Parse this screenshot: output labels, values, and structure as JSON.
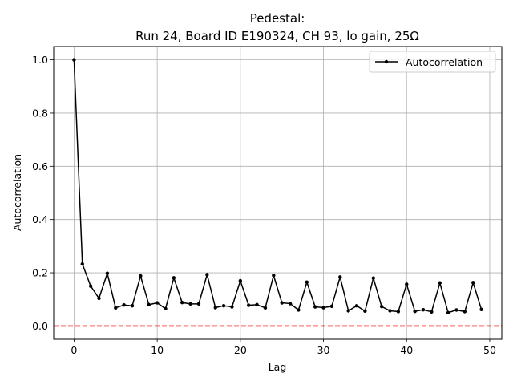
{
  "chart_data": {
    "type": "line",
    "title_line1": "Pedestal:",
    "title_line2": "Run 24, Board ID E190324, CH 93, lo gain, 25Ω",
    "xlabel": "Lag",
    "ylabel": "Autocorrelation",
    "xlim": [
      -2.45,
      51.45
    ],
    "ylim": [
      -0.05,
      1.05
    ],
    "x_ticks": [
      0,
      10,
      20,
      30,
      40,
      50
    ],
    "y_ticks": [
      0.0,
      0.2,
      0.4,
      0.6,
      0.8,
      1.0
    ],
    "x_tick_labels": [
      "0",
      "10",
      "20",
      "30",
      "40",
      "50"
    ],
    "y_tick_labels": [
      "0.0",
      "0.2",
      "0.4",
      "0.6",
      "0.8",
      "1.0"
    ],
    "grid": true,
    "legend_position": "top-right",
    "series": [
      {
        "name": "Autocorrelation",
        "color": "#000000",
        "x": [
          0,
          1,
          2,
          3,
          4,
          5,
          6,
          7,
          8,
          9,
          10,
          11,
          12,
          13,
          14,
          15,
          16,
          17,
          18,
          19,
          20,
          21,
          22,
          23,
          24,
          25,
          26,
          27,
          28,
          29,
          30,
          31,
          32,
          33,
          34,
          35,
          36,
          37,
          38,
          39,
          40,
          41,
          42,
          43,
          44,
          45,
          46,
          47,
          48,
          49
        ],
        "values": [
          1.0,
          0.233,
          0.15,
          0.104,
          0.198,
          0.068,
          0.079,
          0.076,
          0.188,
          0.08,
          0.087,
          0.065,
          0.181,
          0.088,
          0.083,
          0.083,
          0.193,
          0.069,
          0.076,
          0.072,
          0.17,
          0.078,
          0.08,
          0.068,
          0.19,
          0.087,
          0.084,
          0.06,
          0.165,
          0.072,
          0.069,
          0.074,
          0.184,
          0.057,
          0.076,
          0.056,
          0.18,
          0.073,
          0.057,
          0.054,
          0.157,
          0.055,
          0.061,
          0.053,
          0.162,
          0.05,
          0.06,
          0.054,
          0.163,
          0.062
        ]
      }
    ],
    "reference_line": {
      "y": 0.0,
      "color": "#ff0000",
      "style": "dashed"
    }
  }
}
